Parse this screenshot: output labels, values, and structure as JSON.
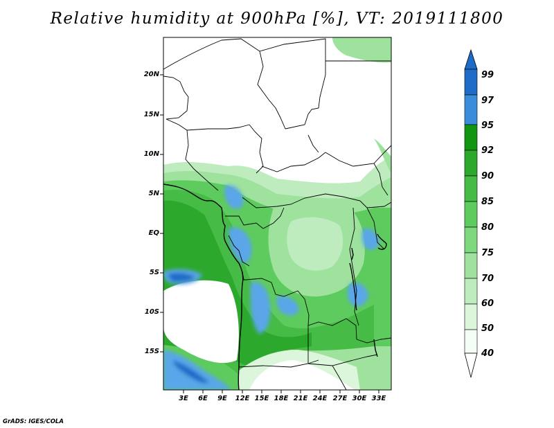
{
  "title": "Relative humidity at 900hPa [%], VT: 2019111800",
  "lat_labels": [
    "20N",
    "15N",
    "10N",
    "5N",
    "EQ",
    "5S",
    "10S",
    "15S"
  ],
  "lon_labels": [
    "3E",
    "6E",
    "9E",
    "12E",
    "15E",
    "18E",
    "21E",
    "24E",
    "27E",
    "30E",
    "33E"
  ],
  "colorbar": {
    "levels": [
      "99",
      "97",
      "95",
      "92",
      "90",
      "85",
      "80",
      "75",
      "70",
      "60",
      "50",
      "40"
    ],
    "colors": [
      "#1e6cc8",
      "#3c8cdc",
      "#5aa6e8",
      "#129612",
      "#2ca82c",
      "#46bb46",
      "#5ecb5e",
      "#7ed87e",
      "#9ee29e",
      "#beecbe",
      "#dcf6dc",
      "#f4fdf4"
    ]
  },
  "credit": "GrADS: IGES/COLA"
}
